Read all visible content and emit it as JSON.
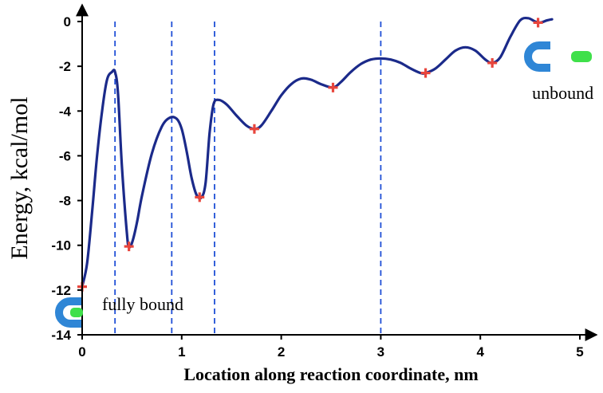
{
  "chart_data": {
    "type": "line",
    "title": "",
    "xlabel": "Location along reaction coordinate, nm",
    "ylabel": "Energy, kcal/mol",
    "xlim": [
      0,
      5
    ],
    "ylim": [
      -14,
      0
    ],
    "x_ticks": [
      0,
      1,
      2,
      3,
      4,
      5
    ],
    "y_ticks": [
      0,
      -2,
      -4,
      -6,
      -8,
      -10,
      -12,
      -14
    ],
    "grid": false,
    "series": [
      {
        "color": "#1b2a8a",
        "points": [
          [
            0.0,
            -11.85
          ],
          [
            0.05,
            -10.8
          ],
          [
            0.1,
            -8.5
          ],
          [
            0.15,
            -6.0
          ],
          [
            0.2,
            -4.0
          ],
          [
            0.25,
            -2.6
          ],
          [
            0.3,
            -2.25
          ],
          [
            0.33,
            -2.25
          ],
          [
            0.36,
            -3.2
          ],
          [
            0.4,
            -6.5
          ],
          [
            0.45,
            -9.5
          ],
          [
            0.47,
            -10.05
          ],
          [
            0.5,
            -9.9
          ],
          [
            0.55,
            -9.0
          ],
          [
            0.6,
            -7.8
          ],
          [
            0.7,
            -5.9
          ],
          [
            0.8,
            -4.7
          ],
          [
            0.88,
            -4.3
          ],
          [
            0.95,
            -4.35
          ],
          [
            1.0,
            -4.8
          ],
          [
            1.05,
            -5.8
          ],
          [
            1.1,
            -7.0
          ],
          [
            1.15,
            -7.75
          ],
          [
            1.2,
            -7.85
          ],
          [
            1.24,
            -7.2
          ],
          [
            1.28,
            -5.0
          ],
          [
            1.32,
            -3.7
          ],
          [
            1.37,
            -3.5
          ],
          [
            1.45,
            -3.7
          ],
          [
            1.55,
            -4.2
          ],
          [
            1.65,
            -4.65
          ],
          [
            1.73,
            -4.8
          ],
          [
            1.8,
            -4.65
          ],
          [
            1.9,
            -4.0
          ],
          [
            2.0,
            -3.3
          ],
          [
            2.1,
            -2.8
          ],
          [
            2.2,
            -2.55
          ],
          [
            2.3,
            -2.6
          ],
          [
            2.4,
            -2.8
          ],
          [
            2.52,
            -2.95
          ],
          [
            2.6,
            -2.7
          ],
          [
            2.7,
            -2.25
          ],
          [
            2.8,
            -1.9
          ],
          [
            2.9,
            -1.7
          ],
          [
            3.0,
            -1.65
          ],
          [
            3.1,
            -1.7
          ],
          [
            3.2,
            -1.85
          ],
          [
            3.3,
            -2.1
          ],
          [
            3.4,
            -2.3
          ],
          [
            3.45,
            -2.3
          ],
          [
            3.55,
            -2.1
          ],
          [
            3.65,
            -1.7
          ],
          [
            3.75,
            -1.3
          ],
          [
            3.85,
            -1.15
          ],
          [
            3.95,
            -1.3
          ],
          [
            4.05,
            -1.7
          ],
          [
            4.12,
            -1.85
          ],
          [
            4.2,
            -1.6
          ],
          [
            4.3,
            -0.7
          ],
          [
            4.4,
            0.05
          ],
          [
            4.48,
            0.15
          ],
          [
            4.55,
            0.0
          ],
          [
            4.6,
            -0.05
          ],
          [
            4.67,
            0.05
          ],
          [
            4.72,
            0.1
          ]
        ]
      }
    ],
    "minima_markers": {
      "color": "#e8453c",
      "points": [
        [
          0.0,
          -11.85
        ],
        [
          0.47,
          -10.05
        ],
        [
          1.18,
          -7.85
        ],
        [
          1.73,
          -4.8
        ],
        [
          2.52,
          -2.95
        ],
        [
          3.45,
          -2.3
        ],
        [
          4.12,
          -1.85
        ],
        [
          4.58,
          -0.05
        ]
      ]
    },
    "dashed_lines": {
      "color": "#1f4fd6",
      "x": [
        0.33,
        0.9,
        1.33,
        3.0
      ]
    },
    "annotations": [
      {
        "text": "fully bound",
        "x": 0.2,
        "y": -12.9
      },
      {
        "text": "unbound",
        "x": 4.52,
        "y": -3.45
      }
    ],
    "icon_colors": {
      "receptor": "#2f86d6",
      "ligand": "#3fe04a"
    }
  }
}
